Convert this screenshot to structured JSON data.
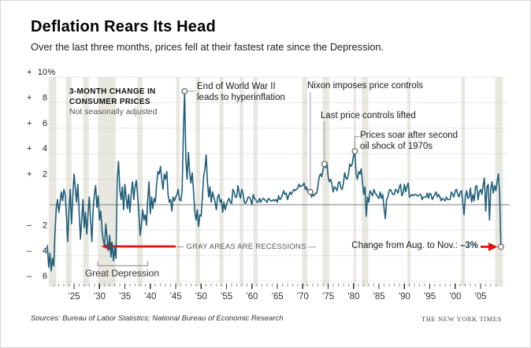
{
  "header": {
    "title": "Deflation Rears Its Head",
    "subtitle": "Over the last three months, prices fell at their fastest rate since the Depression."
  },
  "chart_label": {
    "line1": "3-MONTH CHANGE IN",
    "line2": "CONSUMER PRICES",
    "line3": "Not seasonally adjusted"
  },
  "annotations": {
    "wwii": {
      "line1": "End of World War II",
      "line2": "leads to hyperinflation",
      "year": 1946.75,
      "value": 8.9
    },
    "nixon": {
      "label": "Nixon imposes price controls",
      "year": 1971.5,
      "value": 1.0
    },
    "controls_lifted": {
      "label": "Last price controls lifted",
      "year": 1974.25,
      "value": 3.2
    },
    "oil_shock": {
      "line1": "Prices soar after second",
      "line2": "oil shock of 1970s",
      "year": 1980.25,
      "value": 4.2
    },
    "recessions_note": {
      "label": "— GRAY AREAS ARE RECESSIONS —"
    },
    "great_depression": {
      "label": "Great Depression",
      "start_year": 1929.7,
      "end_year": 1939.5
    },
    "final": {
      "label": "Change from Aug. to Nov.:",
      "value_label": "–3%",
      "year": 2009.0,
      "value": -3.3
    }
  },
  "footer": {
    "sources": "Sources: Bureau of Labor Statistics; National Bureau of Economic Research",
    "credit": "THE NEW YORK TIMES"
  },
  "colors": {
    "line": "#1e5d79",
    "recession_band": "#e8e8e0",
    "grid": "#b8b8b8",
    "zero_line": "#7d7d7d",
    "arrow_red": "#e3120b",
    "annotation_line": "#999999",
    "marker_stroke": "#6b6b6b",
    "tick_major": "#333333",
    "tick_minor": "#999999"
  },
  "chart_data": {
    "type": "line",
    "title": "3-month change in consumer prices, not seasonally adjusted",
    "xlabel": "Year",
    "ylabel": "Percent change (3-month)",
    "xlim": [
      1919.5,
      2009.5
    ],
    "ylim": [
      -6,
      10
    ],
    "grid": "dotted horizontal",
    "x_start": 1919.75,
    "x_step": 0.25,
    "y_ticks": [
      {
        "sign": "+",
        "num": "10",
        "suffix": "%",
        "v": 10
      },
      {
        "sign": "+",
        "num": "8",
        "suffix": "",
        "v": 8
      },
      {
        "sign": "+",
        "num": "6",
        "suffix": "",
        "v": 6
      },
      {
        "sign": "+",
        "num": "4",
        "suffix": "",
        "v": 4
      },
      {
        "sign": "+",
        "num": "2",
        "suffix": "",
        "v": 2
      },
      {
        "sign": "–",
        "num": "2",
        "suffix": "",
        "v": -2
      },
      {
        "sign": "–",
        "num": "4",
        "suffix": "",
        "v": -4
      },
      {
        "sign": "–",
        "num": "6",
        "suffix": "",
        "v": -6
      }
    ],
    "grid_values": [
      10,
      8,
      6,
      4,
      2,
      0,
      -2,
      -4,
      -6
    ],
    "x_ticks": [
      {
        "year": 1925,
        "label": "’25"
      },
      {
        "year": 1930,
        "label": "’30"
      },
      {
        "year": 1935,
        "label": "’35"
      },
      {
        "year": 1940,
        "label": "’40"
      },
      {
        "year": 1945,
        "label": "’45"
      },
      {
        "year": 1950,
        "label": "’50"
      },
      {
        "year": 1955,
        "label": "’55"
      },
      {
        "year": 1960,
        "label": "’60"
      },
      {
        "year": 1965,
        "label": "’65"
      },
      {
        "year": 1970,
        "label": "’70"
      },
      {
        "year": 1975,
        "label": "’75"
      },
      {
        "year": 1980,
        "label": "’80"
      },
      {
        "year": 1985,
        "label": "’85"
      },
      {
        "year": 1990,
        "label": "’90"
      },
      {
        "year": 1995,
        "label": "’95"
      },
      {
        "year": 2000,
        "label": "’00"
      },
      {
        "year": 2005,
        "label": "’05"
      }
    ],
    "recessions": [
      [
        1920.0,
        1921.5
      ],
      [
        1923.4,
        1924.5
      ],
      [
        1926.8,
        1927.9
      ],
      [
        1929.7,
        1933.2
      ],
      [
        1937.4,
        1938.5
      ],
      [
        1945.1,
        1945.8
      ],
      [
        1948.9,
        1949.8
      ],
      [
        1953.6,
        1954.4
      ],
      [
        1957.6,
        1958.3
      ],
      [
        1960.3,
        1961.1
      ],
      [
        1969.9,
        1970.9
      ],
      [
        1973.9,
        1975.2
      ],
      [
        1980.0,
        1980.5
      ],
      [
        1981.6,
        1982.9
      ],
      [
        1990.6,
        1991.2
      ],
      [
        2001.2,
        2001.9
      ],
      [
        2007.9,
        2009.4
      ]
    ],
    "values": [
      -3.2,
      -4.9,
      -3.8,
      -5.2,
      -4.2,
      -4.8,
      -2.2,
      -0.3,
      0.4,
      -0.6,
      0.2,
      1.0,
      0.3,
      1.2,
      0.8,
      -0.8,
      -2.9,
      -0.5,
      1.2,
      -1.5,
      0.6,
      2.4,
      1.3,
      0.2,
      1.6,
      -0.6,
      -2.7,
      -1.2,
      0.4,
      -1.8,
      -0.6,
      -2.3,
      -0.8,
      0.6,
      -1.2,
      -2.9,
      -0.4,
      0.8,
      1.5,
      -0.2,
      0.7,
      -1.2,
      -0.5,
      -2.0,
      -2.8,
      -3.2,
      -1.5,
      -2.6,
      -3.6,
      -2.4,
      -4.1,
      -3.0,
      -4.4,
      -3.4,
      -4.2,
      2.0,
      3.4,
      1.2,
      0.4,
      1.4,
      -0.4,
      1.6,
      0.6,
      -0.3,
      0.8,
      -0.6,
      0.9,
      1.8,
      0.4,
      1.4,
      1.9,
      0.8,
      -0.6,
      -2.4,
      -1.6,
      -0.4,
      -1.2,
      -0.8,
      -1.6,
      0.4,
      1.8,
      -0.7,
      0.6,
      -0.3,
      0.5,
      0.2,
      1.6,
      2.6,
      2.4,
      3.0,
      2.0,
      1.2,
      2.4,
      2.0,
      2.6,
      0.8,
      0.2,
      0.4,
      -0.5,
      0.6,
      0.3,
      0.6,
      0.8,
      1.2,
      0.4,
      0.3,
      1.0,
      5.5,
      8.9,
      3.6,
      2.0,
      4.1,
      2.6,
      1.7,
      2.5,
      1.1,
      -0.5,
      -1.2,
      -0.4,
      -1.7,
      -0.8,
      -0.9,
      0.6,
      2.2,
      2.8,
      3.9,
      1.8,
      0.6,
      1.4,
      0.2,
      1.0,
      0.6,
      0.2,
      -0.4,
      0.6,
      0.8,
      0.2,
      0.4,
      -0.6,
      0.2,
      -0.4,
      0.0,
      0.3,
      0.5,
      0.2,
      0.1,
      1.2,
      1.0,
      0.6,
      0.6,
      1.5,
      0.9,
      0.5,
      1.2,
      0.9,
      0.2,
      0.1,
      0.3,
      0.6,
      0.6,
      0.4,
      0.0,
      0.8,
      0.5,
      0.4,
      0.2,
      0.2,
      0.5,
      0.2,
      0.4,
      0.5,
      0.4,
      0.3,
      0.2,
      0.5,
      0.4,
      0.3,
      0.3,
      0.4,
      0.3,
      0.4,
      0.2,
      0.7,
      0.4,
      0.5,
      0.8,
      1.1,
      0.8,
      0.9,
      0.4,
      0.7,
      1.0,
      0.8,
      1.0,
      1.2,
      1.1,
      1.2,
      1.3,
      1.6,
      1.4,
      1.5,
      1.5,
      1.7,
      1.2,
      1.4,
      1.0,
      1.2,
      1.0,
      0.6,
      0.8,
      0.7,
      0.9,
      0.9,
      1.5,
      2.2,
      2.4,
      2.2,
      2.8,
      3.2,
      2.9,
      3.3,
      2.2,
      1.8,
      2.0,
      1.6,
      1.0,
      1.4,
      1.3,
      1.1,
      1.7,
      1.8,
      1.3,
      1.2,
      1.7,
      2.5,
      2.1,
      2.0,
      2.4,
      3.2,
      3.0,
      3.2,
      3.9,
      4.2,
      2.4,
      2.0,
      2.6,
      2.4,
      2.8,
      1.8,
      0.8,
      1.4,
      -0.9,
      0.6,
      0.2,
      1.1,
      0.9,
      0.7,
      1.2,
      0.9,
      0.8,
      0.6,
      0.5,
      1.0,
      0.5,
      0.8,
      -0.2,
      -1.1,
      0.4,
      0.6,
      1.1,
      1.2,
      1.0,
      0.8,
      0.8,
      1.2,
      1.1,
      0.9,
      1.4,
      1.6,
      0.7,
      0.9,
      1.6,
      1.0,
      1.4,
      1.7,
      0.6,
      0.7,
      0.8,
      0.7,
      0.8,
      0.8,
      0.7,
      0.7,
      0.8,
      0.8,
      0.4,
      0.6,
      0.6,
      0.6,
      0.9,
      0.5,
      0.9,
      0.8,
      0.4,
      0.6,
      0.8,
      1.0,
      0.6,
      0.8,
      0.6,
      0.3,
      0.5,
      0.4,
      0.3,
      0.6,
      0.4,
      0.4,
      0.4,
      1.0,
      0.8,
      0.6,
      1.1,
      1.2,
      0.8,
      0.6,
      1.0,
      1.1,
      0.2,
      -0.8,
      0.6,
      1.1,
      0.5,
      0.6,
      1.3,
      0.2,
      0.8,
      0.3,
      1.4,
      1.5,
      0.4,
      1.0,
      1.2,
      0.8,
      1.5,
      2.1,
      -0.5,
      1.4,
      1.6,
      -1.2,
      1.2,
      1.8,
      0.9,
      1.5,
      1.1,
      1.8,
      2.4,
      0.9,
      -3.3
    ]
  }
}
